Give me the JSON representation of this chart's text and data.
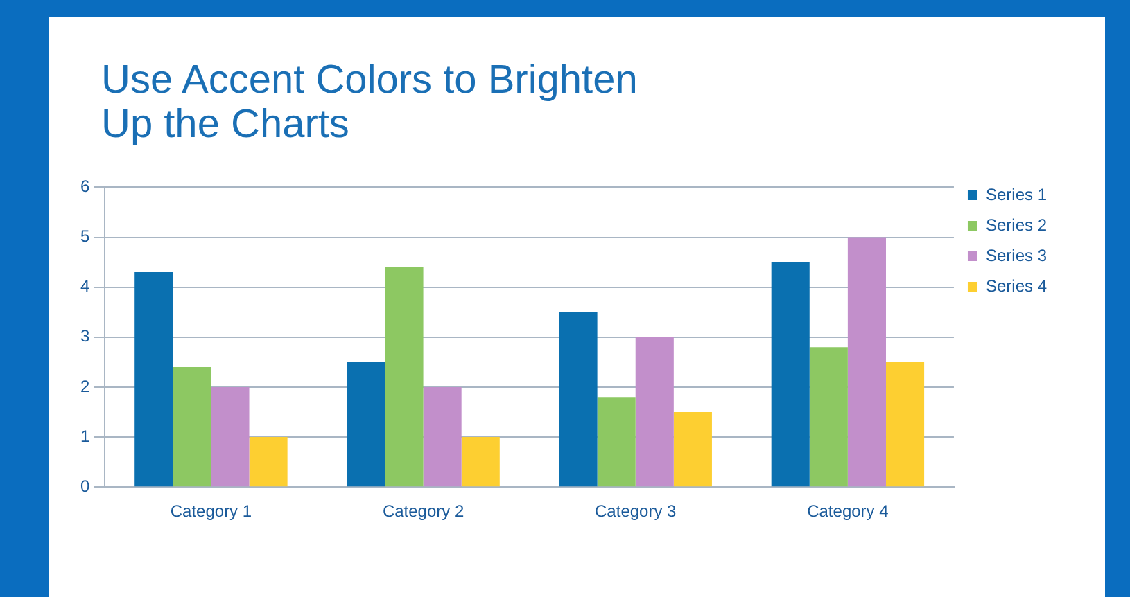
{
  "chart_data": {
    "type": "bar",
    "title": "Use Accent Colors to Brighten\nUp the Charts",
    "categories": [
      "Category 1",
      "Category 2",
      "Category 3",
      "Category 4"
    ],
    "series": [
      {
        "name": "Series 1",
        "color": "#0a70b0",
        "values": [
          4.3,
          2.5,
          3.5,
          4.5
        ]
      },
      {
        "name": "Series 2",
        "color": "#8dc862",
        "values": [
          2.4,
          4.4,
          1.8,
          2.8
        ]
      },
      {
        "name": "Series 3",
        "color": "#c28fcb",
        "values": [
          2,
          2,
          3,
          5
        ]
      },
      {
        "name": "Series 4",
        "color": "#fdcf31",
        "values": [
          1,
          1,
          1.5,
          2.5
        ]
      }
    ],
    "ylim": [
      0,
      6
    ],
    "yticks": [
      0,
      1,
      2,
      3,
      4,
      5,
      6
    ],
    "grid": "y",
    "legend": "right"
  }
}
